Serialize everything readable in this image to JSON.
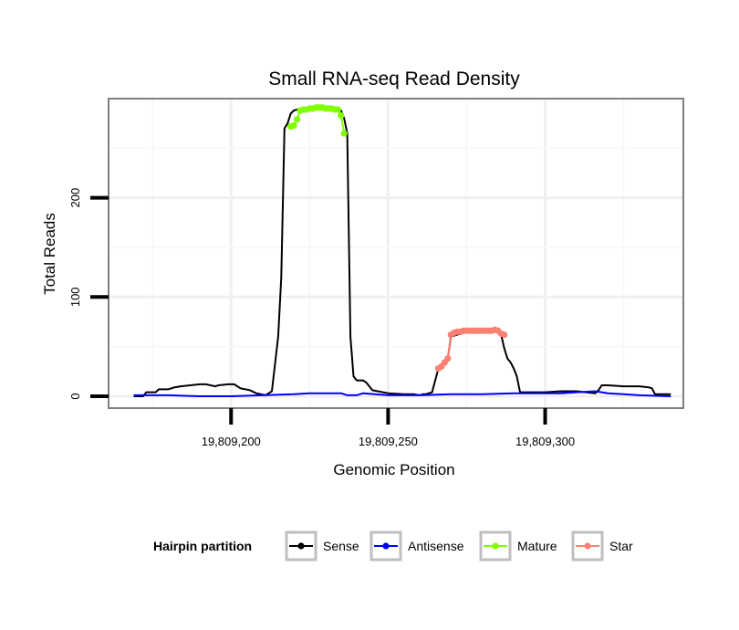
{
  "chart_data": {
    "type": "line",
    "title": "Small RNA-seq Read Density",
    "xlabel": "Genomic Position",
    "ylabel": "Total Reads",
    "xlim": [
      19809161,
      19809344
    ],
    "ylim": [
      -12,
      300
    ],
    "x_ticks": [
      19809200,
      19809250,
      19809300
    ],
    "x_tick_labels": [
      "19,809,200",
      "19,809,250",
      "19,809,300"
    ],
    "y_ticks": [
      0,
      100,
      200
    ],
    "y_tick_labels": [
      "0",
      "100",
      "200"
    ],
    "legend": {
      "title": "Hairpin partition",
      "position": "bottom",
      "entries": [
        {
          "label": "Sense",
          "color": "#000000"
        },
        {
          "label": "Antisense",
          "color": "#0000ff"
        },
        {
          "label": "Mature",
          "color": "#7fff00"
        },
        {
          "label": "Star",
          "color": "#fa8072"
        }
      ]
    },
    "series": [
      {
        "name": "Sense",
        "color": "#000000",
        "x": [
          19809169,
          19809172,
          19809173,
          19809176,
          19809177,
          19809180,
          19809182,
          19809184,
          19809187,
          19809190,
          19809192,
          19809195,
          19809196,
          19809199,
          19809201,
          19809203,
          19809206,
          19809208,
          19809211,
          19809212,
          19809213,
          19809215,
          19809216,
          19809217,
          19809218,
          19809219,
          19809220,
          19809222,
          19809225,
          19809230,
          19809235,
          19809236,
          19809237,
          19809238,
          19809239,
          19809240,
          19809241,
          19809242,
          19809243,
          19809245,
          19809250,
          19809255,
          19809258,
          19809260,
          19809261,
          19809262,
          19809263,
          19809264,
          19809266,
          19809268,
          19809269,
          19809270,
          19809275,
          19809280,
          19809285,
          19809286,
          19809287,
          19809288,
          19809289,
          19809290,
          19809291,
          19809292,
          19809295,
          19809300,
          19809305,
          19809308,
          19809310,
          19809313,
          19809316,
          19809317,
          19809318,
          19809320,
          19809325,
          19809330,
          19809333,
          19809334,
          19809335,
          19809340
        ],
        "values": [
          0,
          0,
          4,
          4,
          7,
          7,
          9,
          10,
          11,
          12,
          12,
          10,
          11,
          12,
          12,
          8,
          6,
          3,
          1,
          3,
          5,
          60,
          120,
          270,
          275,
          285,
          288,
          290,
          290,
          290,
          288,
          280,
          265,
          60,
          20,
          16,
          16,
          16,
          14,
          6,
          3,
          2,
          2,
          1,
          2,
          2,
          3,
          4,
          28,
          34,
          38,
          60,
          65,
          65,
          65,
          62,
          48,
          38,
          34,
          28,
          20,
          4,
          4,
          4,
          5,
          5,
          5,
          4,
          3,
          6,
          11,
          11,
          10,
          10,
          9,
          8,
          2,
          2
        ]
      },
      {
        "name": "Antisense",
        "color": "#0000ff",
        "x": [
          19809169,
          19809180,
          19809190,
          19809200,
          19809210,
          19809220,
          19809225,
          19809235,
          19809237,
          19809240,
          19809242,
          19809250,
          19809260,
          19809270,
          19809280,
          19809290,
          19809300,
          19809305,
          19809310,
          19809316,
          19809320,
          19809325,
          19809330,
          19809340
        ],
        "values": [
          1,
          1,
          0,
          0,
          1,
          2,
          3,
          3,
          1,
          1,
          3,
          1,
          1,
          2,
          2,
          3,
          3,
          3,
          4,
          5,
          3,
          2,
          1,
          0
        ]
      },
      {
        "name": "Mature",
        "color": "#7fff00",
        "x": [
          19809219,
          19809220,
          19809221,
          19809222,
          19809223,
          19809224,
          19809225,
          19809226,
          19809227,
          19809228,
          19809229,
          19809230,
          19809231,
          19809232,
          19809233,
          19809234,
          19809235,
          19809236
        ],
        "values": [
          272,
          273,
          279,
          288,
          289,
          289,
          290,
          290,
          291,
          291,
          291,
          290,
          290,
          290,
          289,
          289,
          283,
          265
        ]
      },
      {
        "name": "Star",
        "color": "#fa8072",
        "x": [
          19809266,
          19809267,
          19809268,
          19809269,
          19809270,
          19809271,
          19809272,
          19809273,
          19809274,
          19809275,
          19809276,
          19809277,
          19809278,
          19809279,
          19809280,
          19809281,
          19809282,
          19809283,
          19809284,
          19809285,
          19809286,
          19809287
        ],
        "values": [
          28,
          30,
          34,
          38,
          62,
          64,
          65,
          65,
          66,
          66,
          66,
          66,
          66,
          66,
          66,
          66,
          66,
          66,
          67,
          66,
          63,
          62
        ]
      }
    ]
  }
}
